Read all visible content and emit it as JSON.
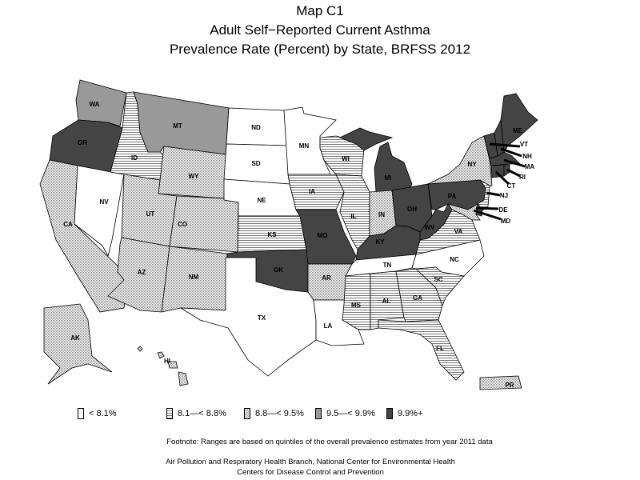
{
  "title": {
    "line1": "Map C1",
    "line2": "Adult Self−Reported Current Asthma",
    "line3": "Prevalence Rate (Percent) by State, BRFSS 2012"
  },
  "legend": [
    {
      "label": "< 8.1%",
      "fill": "white"
    },
    {
      "label": "8.1—< 8.8%",
      "fill": "horizontal-lines"
    },
    {
      "label": "8.8—< 9.5%",
      "fill": "crosshatch"
    },
    {
      "label": "9.5—< 9.9%",
      "fill": "#999999"
    },
    {
      "label": "9.9%+",
      "fill": "#444444"
    }
  ],
  "states": [
    {
      "abbr": "WA",
      "class": 3
    },
    {
      "abbr": "OR",
      "class": 4
    },
    {
      "abbr": "CA",
      "class": 2
    },
    {
      "abbr": "NV",
      "class": 0
    },
    {
      "abbr": "ID",
      "class": 1
    },
    {
      "abbr": "MT",
      "class": 3
    },
    {
      "abbr": "WY",
      "class": 2
    },
    {
      "abbr": "UT",
      "class": 2
    },
    {
      "abbr": "CO",
      "class": 2
    },
    {
      "abbr": "AZ",
      "class": 2
    },
    {
      "abbr": "NM",
      "class": 2
    },
    {
      "abbr": "ND",
      "class": 0
    },
    {
      "abbr": "SD",
      "class": 0
    },
    {
      "abbr": "NE",
      "class": 0
    },
    {
      "abbr": "KS",
      "class": 1
    },
    {
      "abbr": "OK",
      "class": 4
    },
    {
      "abbr": "TX",
      "class": 0
    },
    {
      "abbr": "MN",
      "class": 0
    },
    {
      "abbr": "IA",
      "class": 1
    },
    {
      "abbr": "MO",
      "class": 4
    },
    {
      "abbr": "AR",
      "class": 2
    },
    {
      "abbr": "LA",
      "class": 0
    },
    {
      "abbr": "WI",
      "class": 1
    },
    {
      "abbr": "IL",
      "class": 1
    },
    {
      "abbr": "MI",
      "class": 4
    },
    {
      "abbr": "IN",
      "class": 2
    },
    {
      "abbr": "OH",
      "class": 4
    },
    {
      "abbr": "KY",
      "class": 4
    },
    {
      "abbr": "TN",
      "class": 0
    },
    {
      "abbr": "MS",
      "class": 1
    },
    {
      "abbr": "AL",
      "class": 1
    },
    {
      "abbr": "GA",
      "class": 1
    },
    {
      "abbr": "FL",
      "class": 1
    },
    {
      "abbr": "SC",
      "class": 1
    },
    {
      "abbr": "NC",
      "class": 0
    },
    {
      "abbr": "VA",
      "class": 1
    },
    {
      "abbr": "WV",
      "class": 4
    },
    {
      "abbr": "PA",
      "class": 4
    },
    {
      "abbr": "NY",
      "class": 2
    },
    {
      "abbr": "NJ",
      "class": 1
    },
    {
      "abbr": "DE",
      "class": 4
    },
    {
      "abbr": "MD",
      "class": 2
    },
    {
      "abbr": "VT",
      "class": 4
    },
    {
      "abbr": "NH",
      "class": 4
    },
    {
      "abbr": "ME",
      "class": 4
    },
    {
      "abbr": "MA",
      "class": 4
    },
    {
      "abbr": "CT",
      "class": 4
    },
    {
      "abbr": "RI",
      "class": 4
    },
    {
      "abbr": "AK",
      "class": 2
    },
    {
      "abbr": "HI",
      "class": 2
    },
    {
      "abbr": "PR",
      "class": 2
    }
  ],
  "footnote": "Footnote: Ranges are based on quintiles of the overall prevalence estimates from year 2011 data",
  "credit": {
    "line1": "Air Pollution and Respiratory Health Branch, National Center for Environmental Health",
    "line2": "Centers for Disease Control and Prevention"
  }
}
